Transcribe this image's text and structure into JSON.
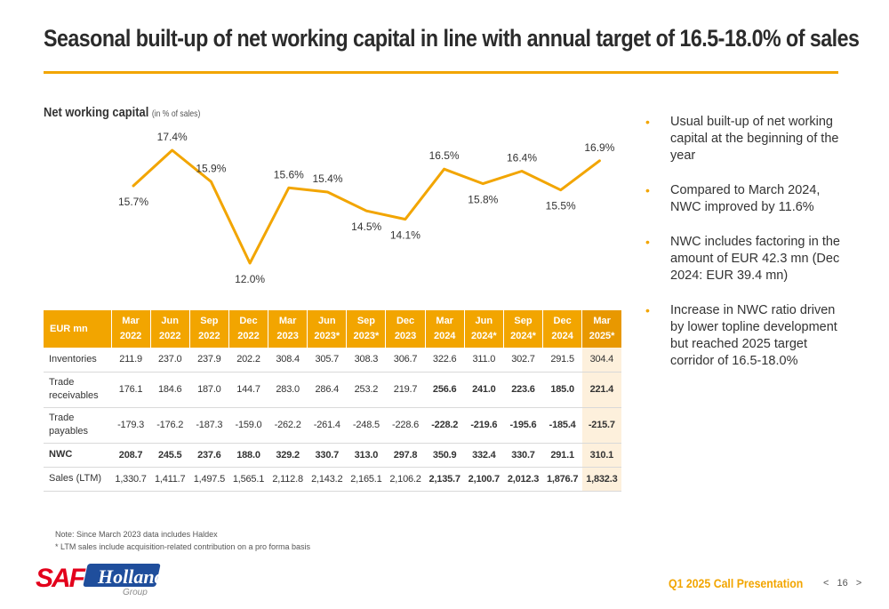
{
  "header": {
    "title": "Seasonal built-up of net working capital in line with annual target of 16.5-18.0% of sales"
  },
  "chart_heading": {
    "title": "Net working capital",
    "subtitle": "(in % of sales)"
  },
  "chart_data": {
    "type": "line",
    "title": "Net working capital",
    "subtitle": "(in % of sales)",
    "categories": [
      "Mar 2022",
      "Jun 2022",
      "Sep 2022",
      "Dec 2022",
      "Mar 2023",
      "Jun 2023*",
      "Sep 2023*",
      "Dec 2023",
      "Mar 2024",
      "Jun 2024*",
      "Sep 2024*",
      "Dec 2024",
      "Mar 2025*"
    ],
    "series": [
      {
        "values": [
          15.7,
          17.4,
          15.9,
          12.0,
          15.6,
          15.4,
          14.5,
          14.1,
          16.5,
          15.8,
          16.4,
          15.5,
          16.9
        ],
        "labels": [
          "15.7%",
          "17.4%",
          "15.9%",
          "12.0%",
          "15.6%",
          "15.4%",
          "14.5%",
          "14.1%",
          "16.5%",
          "15.8%",
          "16.4%",
          "15.5%",
          "16.9%"
        ],
        "label_positions": [
          "below",
          "above",
          "above",
          "below",
          "above",
          "above",
          "below",
          "below",
          "above",
          "below",
          "above",
          "below",
          "above"
        ]
      }
    ],
    "ylim": [
      12.0,
      17.4
    ],
    "grid": false,
    "legend": "none",
    "color": "#F2A500"
  },
  "table": {
    "header_label": "EUR mn",
    "columns": [
      [
        "Mar",
        "2022"
      ],
      [
        "Jun",
        "2022"
      ],
      [
        "Sep",
        "2022"
      ],
      [
        "Dec",
        "2022"
      ],
      [
        "Mar",
        "2023"
      ],
      [
        "Jun",
        "2023*"
      ],
      [
        "Sep",
        "2023*"
      ],
      [
        "Dec",
        "2023"
      ],
      [
        "Mar",
        "2024"
      ],
      [
        "Jun",
        "2024*"
      ],
      [
        "Sep",
        "2024*"
      ],
      [
        "Dec",
        "2024"
      ],
      [
        "Mar",
        "2025*"
      ]
    ],
    "rows": [
      {
        "label": "Inventories",
        "values": [
          "211.9",
          "237.0",
          "237.9",
          "202.2",
          "308.4",
          "305.7",
          "308.3",
          "306.7",
          "322.6",
          "311.0",
          "302.7",
          "291.5",
          "304.4"
        ]
      },
      {
        "label": "Trade receivables",
        "values": [
          "176.1",
          "184.6",
          "187.0",
          "144.7",
          "283.0",
          "286.4",
          "253.2",
          "219.7",
          "256.6",
          "241.0",
          "223.6",
          "185.0",
          "221.4"
        ]
      },
      {
        "label": "Trade payables",
        "values": [
          "-179.3",
          "-176.2",
          "-187.3",
          "-159.0",
          "-262.2",
          "-261.4",
          "-248.5",
          "-228.6",
          "-228.2",
          "-219.6",
          "-195.6",
          "-185.4",
          "-215.7"
        ]
      },
      {
        "label": "NWC",
        "values": [
          "208.7",
          "245.5",
          "237.6",
          "188.0",
          "329.2",
          "330.7",
          "313.0",
          "297.8",
          "350.9",
          "332.4",
          "330.7",
          "291.1",
          "310.1"
        ]
      },
      {
        "label": "Sales (LTM)",
        "values": [
          "1,330.7",
          "1,411.7",
          "1,497.5",
          "1,565.1",
          "2,112.8",
          "2,143.2",
          "2,165.1",
          "2,106.2",
          "2,135.7",
          "2,100.7",
          "2,012.3",
          "1,876.7",
          "1,832.3"
        ]
      }
    ]
  },
  "bullets": [
    "Usual built-up of net working capital at the beginning of the year",
    "Compared to March 2024, NWC improved by 11.6%",
    "NWC includes factoring in the amount of EUR 42.3 mn (Dec 2024: EUR 39.4 mn)",
    "Increase in NWC ratio driven by lower topline development but reached 2025 target corridor of 16.5-18.0%"
  ],
  "notes": {
    "line1": "Note: Since March 2023 data includes Haldex",
    "line2": "* LTM sales include acquisition-related contribution on a pro forma basis"
  },
  "footer": {
    "presentation": "Q1 2025 Call Presentation",
    "page_number": "16",
    "prev": "<",
    "next": ">"
  },
  "logo": {
    "text_main": "SAF",
    "text_script": "Holland",
    "text_sub": "Group"
  },
  "colors": {
    "accent": "#F2A500",
    "logo_red": "#E3001B",
    "logo_blue": "#1F4E9C"
  }
}
